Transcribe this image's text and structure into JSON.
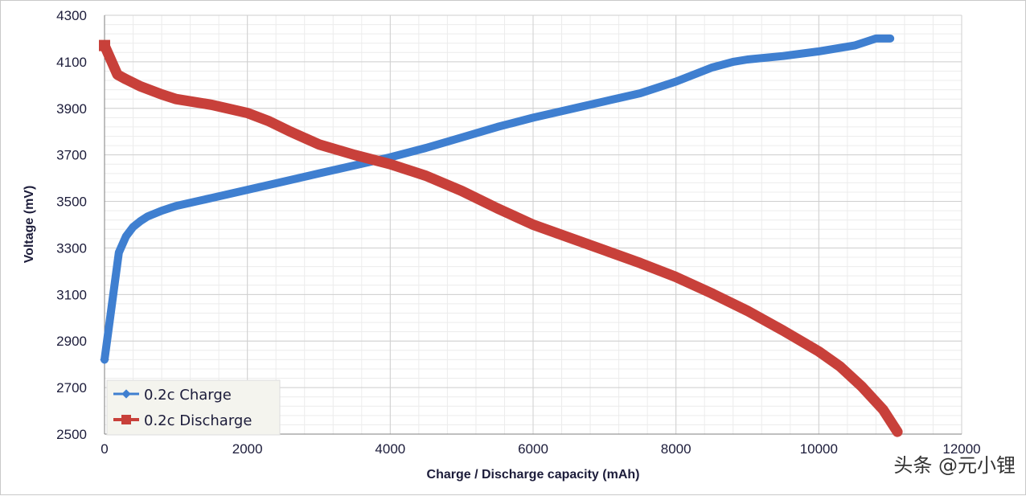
{
  "chart_data": {
    "type": "line",
    "title": "",
    "xlabel": "Charge / Discharge capacity (mAh)",
    "ylabel": "Voltage (mV)",
    "xlim": [
      0,
      12000
    ],
    "ylim": [
      2500,
      4300
    ],
    "x_ticks": [
      "0",
      "2000",
      "4000",
      "6000",
      "8000",
      "10000",
      "12000"
    ],
    "y_ticks": [
      "2500",
      "2700",
      "2900",
      "3100",
      "3300",
      "3500",
      "3700",
      "3900",
      "4100",
      "4300"
    ],
    "grid": true,
    "legend_position": "bottom-left",
    "series": [
      {
        "name": "0.2c Charge",
        "color": "#3f7fd0",
        "marker": "diamond",
        "x": [
          0,
          100,
          200,
          300,
          400,
          500,
          600,
          800,
          1000,
          1500,
          2000,
          2500,
          3000,
          3500,
          4000,
          4500,
          5000,
          5500,
          6000,
          6500,
          7000,
          7500,
          8000,
          8500,
          8800,
          9000,
          9500,
          10000,
          10500,
          10800,
          11000
        ],
        "y": [
          2820,
          3050,
          3280,
          3350,
          3390,
          3415,
          3435,
          3460,
          3480,
          3515,
          3550,
          3585,
          3620,
          3655,
          3690,
          3730,
          3775,
          3820,
          3860,
          3895,
          3930,
          3965,
          4015,
          4075,
          4100,
          4110,
          4125,
          4145,
          4170,
          4200,
          4200
        ]
      },
      {
        "name": "0.2c Discharge",
        "color": "#c8403a",
        "marker": "square",
        "x": [
          0,
          180,
          300,
          500,
          800,
          1000,
          1500,
          2000,
          2300,
          2600,
          3000,
          3500,
          4000,
          4500,
          5000,
          5500,
          6000,
          6500,
          7000,
          7500,
          8000,
          8500,
          9000,
          9500,
          10000,
          10300,
          10600,
          10900,
          11100
        ],
        "y": [
          4170,
          4045,
          4025,
          3995,
          3960,
          3940,
          3915,
          3880,
          3845,
          3800,
          3745,
          3700,
          3660,
          3610,
          3545,
          3470,
          3400,
          3345,
          3290,
          3235,
          3175,
          3105,
          3030,
          2945,
          2855,
          2790,
          2705,
          2605,
          2510
        ]
      }
    ]
  },
  "watermark": "头条 @元小锂"
}
